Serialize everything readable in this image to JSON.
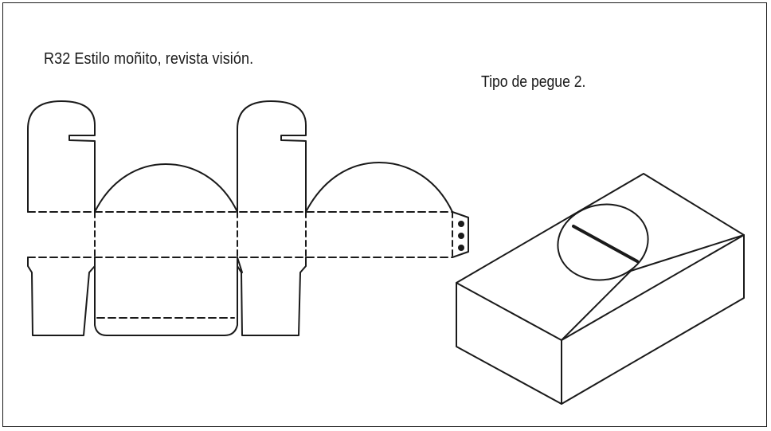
{
  "figure": {
    "title": "R32 Estilo moñito, revista visión.",
    "glue_type_label": "Tipo de pegue 2."
  },
  "styles": {
    "line_color": "#1a1a1a",
    "background": "#ffffff"
  }
}
